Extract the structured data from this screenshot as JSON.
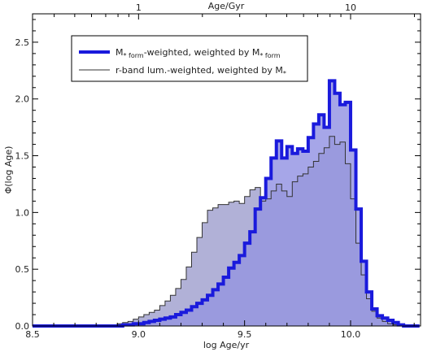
{
  "chart_data": {
    "type": "area",
    "xlabel": "log Age/yr",
    "ylabel": "Φ(log Age)",
    "top_xlabel": "Age/Gyr",
    "xlim": [
      8.5,
      10.33
    ],
    "ylim": [
      0,
      2.75
    ],
    "xticks": [
      8.5,
      9.0,
      9.5,
      10.0
    ],
    "xtick_labels": [
      "8.5",
      "9.0",
      "9.5",
      "10.0"
    ],
    "yticks": [
      0.0,
      0.5,
      1.0,
      1.5,
      2.0,
      2.5
    ],
    "ytick_labels": [
      "0.0",
      "0.5",
      "1.0",
      "1.5",
      "2.0",
      "2.5"
    ],
    "top_ticks_gyr": [
      1,
      10
    ],
    "top_tick_labels": [
      "1",
      "10"
    ],
    "grid": false,
    "legend_position": "top-right",
    "bin_edges_start": 8.5,
    "bin_width": 0.025,
    "series": [
      {
        "legend_main": "M",
        "legend_sub": "* form",
        "legend_middle": "-weighted, weighted by M",
        "legend_end_sub": "* form",
        "color": "#1a1adc",
        "fill": "#a6a6e8",
        "line_width": 4,
        "values": [
          0.0,
          0.0,
          0.0,
          0.0,
          0.0,
          0.0,
          0.0,
          0.0,
          0.0,
          0.0,
          0.0,
          0.0,
          0.0,
          0.0,
          0.0,
          0.0,
          0.0,
          0.01,
          0.01,
          0.02,
          0.02,
          0.03,
          0.04,
          0.05,
          0.06,
          0.07,
          0.08,
          0.1,
          0.12,
          0.14,
          0.17,
          0.2,
          0.23,
          0.27,
          0.32,
          0.37,
          0.43,
          0.51,
          0.56,
          0.62,
          0.73,
          0.83,
          1.03,
          1.13,
          1.3,
          1.48,
          1.63,
          1.48,
          1.58,
          1.52,
          1.56,
          1.54,
          1.66,
          1.78,
          1.86,
          1.75,
          2.16,
          2.05,
          1.95,
          1.97,
          1.55,
          1.03,
          0.57,
          0.3,
          0.15,
          0.09,
          0.07,
          0.05,
          0.03,
          0.01,
          0.0,
          0.0,
          0.0
        ]
      },
      {
        "legend_main": "r-band lum.-weighted, weighted by M",
        "legend_sub": "*",
        "color": "#333333",
        "fill": "#dadada",
        "line_width": 1,
        "values": [
          0.0,
          0.0,
          0.0,
          0.0,
          0.0,
          0.0,
          0.0,
          0.0,
          0.0,
          0.0,
          0.0,
          0.0,
          0.0,
          0.0,
          0.0,
          0.01,
          0.02,
          0.03,
          0.04,
          0.06,
          0.08,
          0.1,
          0.12,
          0.14,
          0.18,
          0.22,
          0.27,
          0.33,
          0.41,
          0.52,
          0.65,
          0.78,
          0.91,
          1.02,
          1.04,
          1.07,
          1.07,
          1.09,
          1.1,
          1.08,
          1.14,
          1.2,
          1.22,
          1.1,
          1.12,
          1.19,
          1.25,
          1.19,
          1.14,
          1.27,
          1.32,
          1.34,
          1.4,
          1.45,
          1.52,
          1.57,
          1.67,
          1.6,
          1.62,
          1.43,
          1.12,
          0.73,
          0.45,
          0.24,
          0.13,
          0.07,
          0.04,
          0.02,
          0.01,
          0.0,
          0.0,
          0.0,
          0.0
        ]
      }
    ]
  }
}
